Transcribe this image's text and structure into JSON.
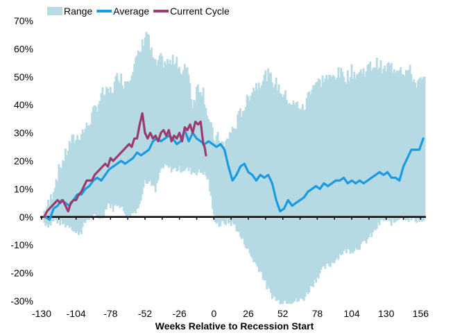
{
  "chart_data": {
    "type": "line",
    "xlabel": "Weeks Relative to Recession Start",
    "ylabel": "",
    "xlim": [
      -130,
      160
    ],
    "ylim": [
      -30,
      70
    ],
    "x_ticks": [
      -130,
      -104,
      -78,
      -52,
      -26,
      0,
      26,
      52,
      78,
      104,
      130,
      156
    ],
    "y_ticks": [
      -30,
      -20,
      -10,
      0,
      10,
      20,
      30,
      40,
      50,
      60,
      70
    ],
    "y_tick_format": "percent",
    "grid": false,
    "legend_position": "top-left",
    "legend": [
      {
        "label": "Range",
        "kind": "band",
        "color": "#b5dae3"
      },
      {
        "label": "Average",
        "kind": "line",
        "color": "#1a9ae0"
      },
      {
        "label": "Current Cycle",
        "kind": "line",
        "color": "#9c3a6e"
      }
    ],
    "series": [
      {
        "name": "Range",
        "kind": "band",
        "color": "#b5dae3",
        "x": [
          -128,
          -124,
          -120,
          -116,
          -112,
          -108,
          -104,
          -100,
          -96,
          -92,
          -88,
          -84,
          -80,
          -76,
          -72,
          -68,
          -64,
          -60,
          -56,
          -52,
          -50,
          -48,
          -44,
          -40,
          -36,
          -32,
          -28,
          -24,
          -20,
          -16,
          -12,
          -8,
          -4,
          0,
          4,
          8,
          12,
          16,
          20,
          24,
          28,
          32,
          36,
          40,
          44,
          48,
          52,
          56,
          60,
          64,
          68,
          72,
          76,
          80,
          84,
          88,
          92,
          96,
          100,
          104,
          108,
          112,
          116,
          120,
          124,
          128,
          132,
          136,
          140,
          144,
          148,
          152,
          156,
          159
        ],
        "low": [
          -2,
          -3,
          -1,
          -2,
          -3,
          -3,
          -6,
          -5,
          -1,
          0,
          0,
          0,
          5,
          3,
          5,
          2,
          0,
          2,
          4,
          14,
          12,
          13,
          9,
          17,
          18,
          17,
          17,
          17,
          17,
          16,
          16,
          16,
          13,
          0,
          -3,
          -2,
          -2,
          -3,
          -7,
          -10,
          -14,
          -17,
          -20,
          -25,
          -28,
          -30,
          -30,
          -30,
          -30,
          -30,
          -29,
          -26,
          -23,
          -20,
          -18,
          -17,
          -15,
          -13,
          -12,
          -12,
          -11,
          -10,
          -8,
          -6,
          -3,
          -1,
          -2,
          -2,
          0,
          0,
          -1,
          -1,
          -1,
          -2
        ],
        "high": [
          2,
          5,
          12,
          18,
          22,
          27,
          28,
          30,
          32,
          36,
          40,
          44,
          44,
          46,
          51,
          48,
          50,
          55,
          58,
          65,
          66,
          60,
          54,
          56,
          55,
          55,
          57,
          50,
          55,
          40,
          47,
          45,
          35,
          28,
          28,
          25,
          30,
          32,
          37,
          40,
          45,
          47,
          49,
          51,
          49,
          47,
          44,
          42,
          40,
          40,
          38,
          45,
          48,
          48,
          50,
          49,
          51,
          51,
          50,
          52,
          51,
          52,
          53,
          54,
          55,
          52,
          54,
          53,
          54,
          52,
          52,
          48,
          48,
          49
        ]
      },
      {
        "name": "Average",
        "kind": "line",
        "color": "#1a9ae0",
        "x": [
          -127,
          -124,
          -121,
          -118,
          -115,
          -112,
          -109,
          -106,
          -103,
          -100,
          -97,
          -94,
          -91,
          -88,
          -85,
          -82,
          -79,
          -76,
          -73,
          -70,
          -67,
          -64,
          -61,
          -58,
          -55,
          -52,
          -49,
          -46,
          -43,
          -40,
          -37,
          -34,
          -31,
          -28,
          -25,
          -22,
          -19,
          -16,
          -13,
          -10,
          -7,
          -4,
          -1,
          2,
          5,
          8,
          11,
          14,
          17,
          20,
          23,
          26,
          29,
          32,
          35,
          38,
          41,
          44,
          47,
          50,
          53,
          56,
          59,
          62,
          65,
          68,
          71,
          74,
          77,
          80,
          83,
          86,
          89,
          92,
          95,
          98,
          101,
          104,
          107,
          110,
          113,
          116,
          119,
          122,
          125,
          128,
          131,
          134,
          137,
          140,
          143,
          146,
          149,
          152,
          155,
          158
        ],
        "y": [
          0,
          -1,
          3,
          4,
          6,
          5,
          4,
          6,
          8,
          8,
          10,
          11,
          13,
          14,
          13,
          15,
          17,
          18,
          19,
          20,
          19,
          20,
          21,
          23,
          22,
          23,
          24,
          27,
          28,
          27,
          28,
          29,
          28,
          26,
          27,
          31,
          27,
          30,
          28,
          27,
          26,
          27,
          26,
          25,
          26,
          24,
          18,
          13,
          15,
          18,
          19,
          16,
          15,
          13,
          15,
          14,
          15,
          12,
          6,
          2,
          3,
          6,
          4,
          5,
          6,
          7,
          9,
          10,
          11,
          10,
          12,
          11,
          12,
          13,
          13,
          14,
          12,
          13,
          12,
          13,
          12,
          13,
          14,
          15,
          16,
          15,
          16,
          14,
          14,
          13,
          18,
          21,
          24,
          24,
          24,
          28
        ]
      },
      {
        "name": "Current Cycle",
        "kind": "line",
        "color": "#9c3a6e",
        "x": [
          -128,
          -126,
          -124,
          -122,
          -120,
          -118,
          -116,
          -114,
          -112,
          -110,
          -108,
          -106,
          -104,
          -102,
          -100,
          -98,
          -96,
          -94,
          -92,
          -90,
          -88,
          -86,
          -84,
          -82,
          -80,
          -78,
          -76,
          -74,
          -72,
          -70,
          -68,
          -66,
          -64,
          -62,
          -60,
          -58,
          -56,
          -54,
          -52,
          -50,
          -48,
          -46,
          -44,
          -42,
          -40,
          -38,
          -36,
          -34,
          -32,
          -30,
          -28,
          -26,
          -24,
          -22,
          -20,
          -18,
          -16,
          -14,
          -12,
          -10,
          -8,
          -7,
          -6
        ],
        "y": [
          0,
          2,
          3,
          4,
          5,
          6,
          5,
          6,
          4,
          2,
          5,
          6,
          6,
          8,
          9,
          11,
          13,
          13,
          13,
          15,
          16,
          17,
          18,
          19,
          18,
          21,
          20,
          21,
          22,
          23,
          24,
          25,
          26,
          25,
          28,
          28,
          33,
          37,
          30,
          28,
          30,
          28,
          29,
          27,
          30,
          31,
          29,
          31,
          27,
          29,
          28,
          30,
          27,
          32,
          31,
          33,
          30,
          34,
          33,
          34,
          26,
          25,
          22
        ]
      }
    ]
  }
}
